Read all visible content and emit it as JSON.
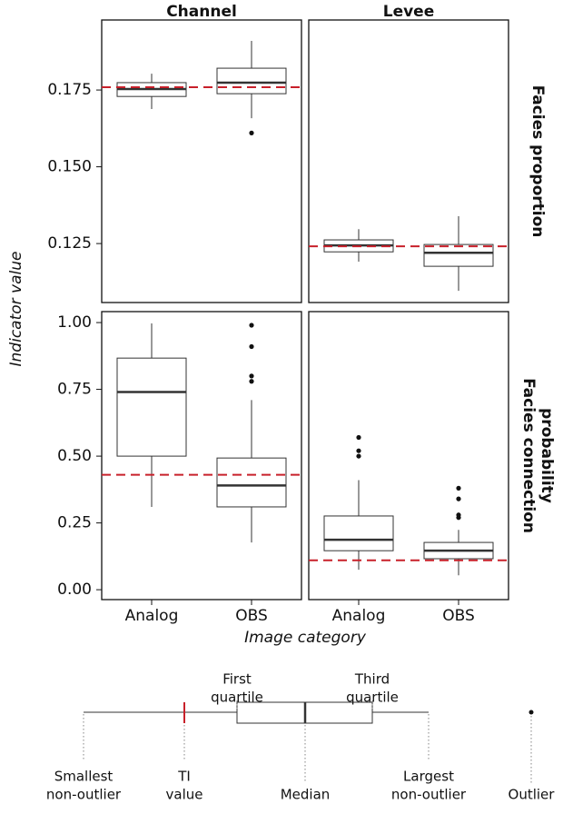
{
  "chart_data": {
    "type": "box",
    "y_label": "Indicator value",
    "x_label": "Image category",
    "columns": [
      "Channel",
      "Levee"
    ],
    "categories": [
      "Analog",
      "OBS"
    ],
    "box_color": "#333333",
    "ti_color": "#c8202a",
    "rows": [
      {
        "label": [
          "Facies proportion"
        ],
        "ylim": [
          0.1058,
          0.1978
        ],
        "yticks": [
          0.125,
          {
            "value": 0.15,
            "label": "0.150"
          },
          0.175
        ],
        "panels": [
          {
            "ti_value": 0.1759,
            "boxes": [
              {
                "min": 0.1688,
                "q1": 0.1729,
                "median": 0.1753,
                "q3": 0.1774,
                "max": 0.1803,
                "outliers": []
              },
              {
                "min": 0.1658,
                "q1": 0.1738,
                "median": 0.1774,
                "q3": 0.1821,
                "max": 0.191,
                "outliers": [
                  0.161
                ]
              }
            ]
          },
          {
            "ti_value": 0.1241,
            "boxes": [
              {
                "min": 0.1191,
                "q1": 0.1223,
                "median": 0.1244,
                "q3": 0.1262,
                "max": 0.1297,
                "outliers": []
              },
              {
                "min": 0.1096,
                "q1": 0.1176,
                "median": 0.122,
                "q3": 0.1247,
                "max": 0.1339,
                "outliers": []
              }
            ]
          }
        ]
      },
      {
        "label": [
          "Facies connection",
          "probability"
        ],
        "ylim": [
          -0.037,
          1.041
        ],
        "yticks": [
          {
            "value": 0,
            "label": "0.00"
          },
          0.25,
          {
            "value": 0.5,
            "label": "0.50"
          },
          0.75,
          {
            "value": 1,
            "label": "1.00"
          }
        ],
        "panels": [
          {
            "ti_value": 0.43,
            "boxes": [
              {
                "min": 0.31,
                "q1": 0.5,
                "median": 0.74,
                "q3": 0.867,
                "max": 0.997,
                "outliers": []
              },
              {
                "min": 0.177,
                "q1": 0.31,
                "median": 0.39,
                "q3": 0.493,
                "max": 0.71,
                "outliers": [
                  0.78,
                  0.8,
                  0.91,
                  0.99
                ]
              }
            ]
          },
          {
            "ti_value": 0.11,
            "boxes": [
              {
                "min": 0.075,
                "q1": 0.146,
                "median": 0.187,
                "q3": 0.276,
                "max": 0.41,
                "outliers": [
                  0.5,
                  0.52,
                  0.57
                ]
              },
              {
                "min": 0.054,
                "q1": 0.116,
                "median": 0.146,
                "q3": 0.177,
                "max": 0.224,
                "outliers": [
                  0.27,
                  0.28,
                  0.34,
                  0.38
                ]
              }
            ]
          }
        ]
      }
    ]
  },
  "key": {
    "first_quartile": [
      "First",
      "quartile"
    ],
    "third_quartile": [
      "Third",
      "quartile"
    ],
    "smallest": [
      "Smallest",
      "non-outlier"
    ],
    "ti": [
      "TI",
      "value"
    ],
    "median": [
      "Median"
    ],
    "largest": [
      "Largest",
      "non-outlier"
    ],
    "outlier": [
      "Outlier"
    ]
  }
}
